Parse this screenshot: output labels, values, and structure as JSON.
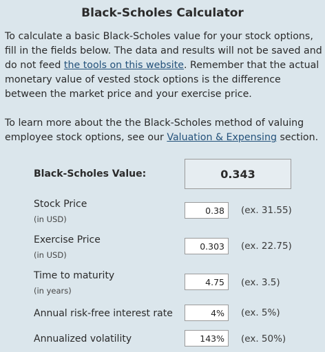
{
  "title": "Black-Scholes Calculator",
  "intro": {
    "before_link": "To calculate a basic Black-Scholes value for your stock options, fill in the fields below. The data and results will not be saved and do not feed ",
    "link": "the tools on this website",
    "after_link": ". Remember that the actual monetary value of vested stock options is the difference between the market price and your exercise price."
  },
  "learn_more": {
    "before_link": "To learn more about the the Black-Scholes method of valuing employee stock options, see our ",
    "link": "Valuation & Expensing",
    "after_link": " section."
  },
  "result": {
    "label": "Black-Scholes Value:",
    "value": "0.343"
  },
  "fields": {
    "stock_price": {
      "label": "Stock Price",
      "unit": "(in USD)",
      "value": "0.38",
      "example": "(ex. 31.55)"
    },
    "exercise_price": {
      "label": "Exercise Price",
      "unit": "(in USD)",
      "value": "0.303",
      "example": "(ex. 22.75)"
    },
    "maturity": {
      "label": "Time to maturity",
      "unit": "(in years)",
      "value": "4.75",
      "example": "(ex. 3.5)"
    },
    "risk_free": {
      "label": "Annual risk-free interest rate",
      "value": "4%",
      "example": "(ex. 5%)"
    },
    "volatility": {
      "label": "Annualized volatility",
      "value": "143%",
      "example": "(ex. 50%)"
    }
  }
}
